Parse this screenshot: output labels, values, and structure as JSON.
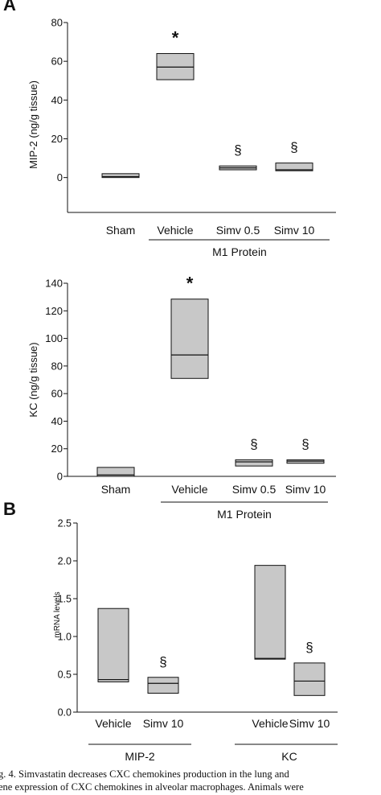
{
  "panel_labels": {
    "a": "A",
    "b": "B"
  },
  "caption_lines": [
    "g. 4. Simvastatin decreases CXC chemokines production in the lung and",
    "ene expression of CXC chemokines in alveolar macrophages. Animals were"
  ],
  "colors": {
    "box_fill": "#c8c8c8",
    "stroke": "#111111"
  },
  "chart_data": [
    {
      "type": "box",
      "panel": "A",
      "ylabel": "MIP-2 (ng/g tissue)",
      "ylim": [
        -18,
        80
      ],
      "yticks": [
        0,
        20,
        40,
        60,
        80
      ],
      "categories": [
        "Sham",
        "Vehicle",
        "Simv 0.5",
        "Simv 10"
      ],
      "group_label": "M1 Protein",
      "boxes": [
        {
          "category": "Sham",
          "low": 0,
          "median": 0.5,
          "high": 2,
          "marker": ""
        },
        {
          "category": "Vehicle",
          "low": 50.5,
          "median": 57,
          "high": 64,
          "marker": "*"
        },
        {
          "category": "Simv 0.5",
          "low": 4,
          "median": 5,
          "high": 6,
          "marker": "§"
        },
        {
          "category": "Simv 10",
          "low": 3.5,
          "median": 4,
          "high": 7.5,
          "marker": "§"
        }
      ]
    },
    {
      "type": "box",
      "panel": "A",
      "ylabel": "KC (ng/g tissue)",
      "ylim": [
        0,
        140
      ],
      "yticks": [
        0,
        20,
        40,
        60,
        80,
        100,
        120,
        140
      ],
      "categories": [
        "Sham",
        "Vehicle",
        "Simv 0.5",
        "Simv 10"
      ],
      "group_label": "M1 Protein",
      "boxes": [
        {
          "category": "Sham",
          "low": 0,
          "median": 1,
          "high": 6.5,
          "marker": ""
        },
        {
          "category": "Vehicle",
          "low": 71,
          "median": 88,
          "high": 128.5,
          "marker": "*"
        },
        {
          "category": "Simv 0.5",
          "low": 7.5,
          "median": 10.5,
          "high": 12,
          "marker": "§"
        },
        {
          "category": "Simv 10",
          "low": 9.5,
          "median": 11,
          "high": 12,
          "marker": "§"
        }
      ]
    },
    {
      "type": "box",
      "panel": "B",
      "ylabel": "mRNA levels",
      "ylim": [
        0,
        2.5
      ],
      "yticks": [
        "0.0",
        "0.5",
        "1.0",
        "1.5",
        "2.0",
        "2.5"
      ],
      "categories": [
        "Vehicle",
        "Simv 10",
        "Vehicle",
        "Simv 10"
      ],
      "groups": [
        "MIP-2",
        "KC"
      ],
      "boxes": [
        {
          "category": "Vehicle",
          "group": "MIP-2",
          "low": 0.4,
          "median": 0.43,
          "high": 1.37,
          "marker": ""
        },
        {
          "category": "Simv 10",
          "group": "MIP-2",
          "low": 0.25,
          "median": 0.38,
          "high": 0.46,
          "marker": "§"
        },
        {
          "category": "Vehicle",
          "group": "KC",
          "low": 0.7,
          "median": 0.71,
          "high": 1.94,
          "marker": ""
        },
        {
          "category": "Simv 10",
          "group": "KC",
          "low": 0.22,
          "median": 0.41,
          "high": 0.65,
          "marker": "§"
        }
      ]
    }
  ]
}
